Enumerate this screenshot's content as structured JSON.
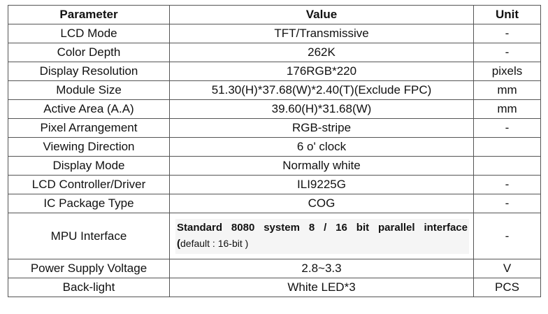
{
  "headers": {
    "parameter": "Parameter",
    "value": "Value",
    "unit": "Unit"
  },
  "rows": [
    {
      "parameter": "LCD Mode",
      "value": "TFT/Transmissive",
      "unit": "-"
    },
    {
      "parameter": "Color Depth",
      "value": "262K",
      "unit": "-"
    },
    {
      "parameter": "Display Resolution",
      "value": "176RGB*220",
      "unit": "pixels"
    },
    {
      "parameter": "Module Size",
      "value": "51.30(H)*37.68(W)*2.40(T)(Exclude FPC)",
      "unit": "mm"
    },
    {
      "parameter": "Active Area (A.A)",
      "value": "39.60(H)*31.68(W)",
      "unit": "mm"
    },
    {
      "parameter": "Pixel Arrangement",
      "value": "RGB-stripe",
      "unit": "-"
    },
    {
      "parameter": "Viewing Direction",
      "value": "6 o' clock",
      "unit": ""
    },
    {
      "parameter": "Display Mode",
      "value": "Normally white",
      "unit": ""
    },
    {
      "parameter": "LCD Controller/Driver",
      "value": "ILI9225G",
      "unit": "-"
    },
    {
      "parameter": "IC Package Type",
      "value": "COG",
      "unit": "-"
    }
  ],
  "mpu": {
    "parameter": "MPU Interface",
    "value_line1": "Standard 8080 system 8 / 16 bit parallel interface",
    "value_paren": "(",
    "value_line2": "default : 16-bit )",
    "unit": "-"
  },
  "rows_after": [
    {
      "parameter": "Power Supply Voltage",
      "value": "2.8~3.3",
      "unit": "V"
    },
    {
      "parameter": "Back-light",
      "value": "White LED*3",
      "unit": "PCS"
    }
  ]
}
